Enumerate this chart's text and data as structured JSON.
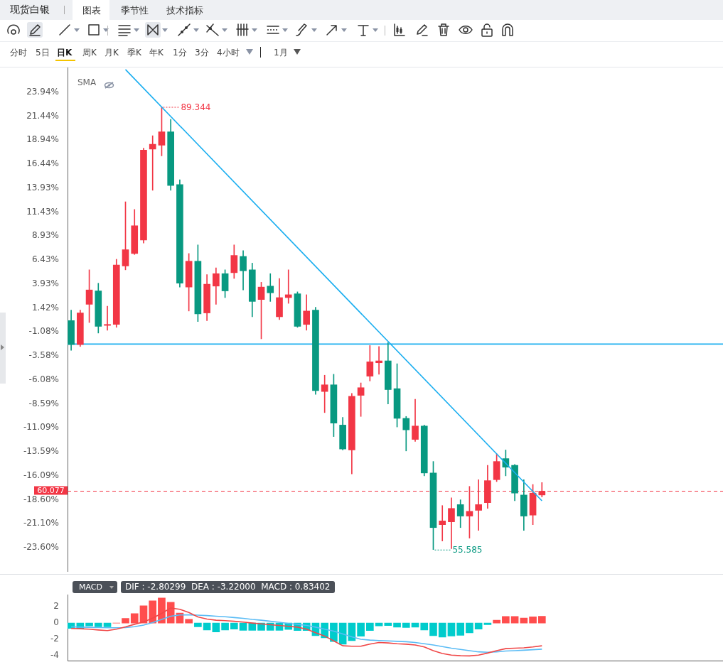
{
  "chart_data": [
    {
      "type": "candlestick",
      "title": "现货白银",
      "annotations": [
        "图表",
        "季节性",
        "技术指标",
        "分时",
        "5日",
        "日K",
        "周K",
        "月K",
        "季K",
        "年K",
        "1分",
        "3分",
        "4小时",
        "1月",
        "SMA",
        "89.344",
        "55.585",
        "60.077"
      ],
      "categories": [
        null,
        null,
        null,
        null,
        null,
        null,
        null,
        null,
        null,
        null,
        null,
        null,
        null,
        null,
        null,
        null,
        null,
        null,
        null,
        null,
        null,
        null,
        null,
        null,
        null,
        null,
        null,
        null,
        null,
        null,
        null,
        null,
        null,
        null,
        null,
        null,
        null,
        null,
        null,
        null,
        null,
        null,
        null,
        null,
        null,
        null,
        null,
        null,
        null,
        null,
        null,
        null,
        null
      ],
      "ohlc": [
        [
          0.1,
          1.2,
          -3.0,
          -2.4
        ],
        [
          -2.4,
          1.2,
          -2.6,
          0.9
        ],
        [
          1.8,
          5.4,
          -0.1,
          3.3
        ],
        [
          3.2,
          4.0,
          -1.2,
          -0.5
        ],
        [
          -0.4,
          1.6,
          -0.9,
          -0.3
        ],
        [
          -0.3,
          6.5,
          -0.6,
          5.9
        ],
        [
          5.8,
          12.5,
          5.4,
          7.5
        ],
        [
          7.1,
          11.7,
          7.0,
          10.0
        ],
        [
          8.5,
          18.1,
          8.2,
          17.9
        ],
        [
          18.0,
          19.4,
          13.7,
          18.5
        ],
        [
          18.4,
          22.4,
          17.3,
          19.8
        ],
        [
          19.8,
          21.1,
          13.7,
          14.2
        ],
        [
          14.3,
          14.8,
          3.6,
          4.0
        ],
        [
          3.6,
          7.1,
          1.1,
          6.3
        ],
        [
          6.3,
          8.0,
          0.0,
          0.8
        ],
        [
          0.9,
          4.9,
          0.1,
          3.9
        ],
        [
          3.7,
          5.6,
          1.8,
          5.0
        ],
        [
          5.0,
          5.4,
          2.5,
          3.2
        ],
        [
          5.1,
          8.0,
          4.5,
          6.9
        ],
        [
          6.8,
          7.4,
          3.3,
          5.3
        ],
        [
          5.4,
          6.1,
          0.5,
          2.1
        ],
        [
          2.3,
          4.1,
          -1.8,
          3.6
        ],
        [
          3.7,
          5.0,
          2.1,
          3.0
        ],
        [
          0.5,
          4.5,
          0.2,
          2.5
        ],
        [
          2.5,
          5.4,
          1.9,
          2.8
        ],
        [
          2.9,
          3.1,
          -0.6,
          -0.5
        ],
        [
          -0.3,
          2.8,
          -0.9,
          1.1
        ],
        [
          1.2,
          1.5,
          -7.6,
          -7.2
        ],
        [
          -7.3,
          -5.6,
          -9.5,
          -6.6
        ],
        [
          -6.6,
          -5.5,
          -12.0,
          -10.6
        ],
        [
          -10.8,
          -10.0,
          -13.4,
          -13.3
        ],
        [
          -13.4,
          -7.5,
          -15.9,
          -7.8
        ],
        [
          -7.7,
          -6.4,
          -9.9,
          -6.9
        ],
        [
          -5.7,
          -2.5,
          -6.2,
          -4.2
        ],
        [
          -4.3,
          -2.6,
          -5.5,
          -4.1
        ],
        [
          -4.1,
          -2.2,
          -8.6,
          -7.1
        ],
        [
          -7.0,
          -4.4,
          -11.0,
          -10.1
        ],
        [
          -10.1,
          -9.9,
          -13.5,
          -11.3
        ],
        [
          -12.3,
          -8.1,
          -12.5,
          -10.9
        ],
        [
          -10.9,
          -10.8,
          -16.1,
          -15.8
        ],
        [
          -15.8,
          -14.6,
          -23.8,
          -21.5
        ],
        [
          -21.2,
          -19.2,
          -22.9,
          -20.8
        ],
        [
          -20.9,
          -18.4,
          -23.7,
          -19.5
        ],
        [
          -19.1,
          -18.6,
          -21.5,
          -20.3
        ],
        [
          -20.3,
          -17.2,
          -22.6,
          -19.8
        ],
        [
          -19.7,
          -16.5,
          -21.8,
          -19.1
        ],
        [
          -18.9,
          -15.0,
          -19.5,
          -16.6
        ],
        [
          -16.5,
          -13.8,
          -16.7,
          -14.6
        ],
        [
          -14.3,
          -13.4,
          -16.1,
          -15.2
        ],
        [
          -15.0,
          -14.9,
          -18.7,
          -17.9
        ],
        [
          -18.1,
          -16.5,
          -21.8,
          -20.3
        ],
        [
          -20.2,
          -17.0,
          -21.2,
          -17.9
        ],
        [
          -18.1,
          -16.8,
          -18.3,
          -17.7
        ]
      ],
      "colors": [
        "#089981",
        "#f23645",
        "#f23645",
        "#089981",
        "#f23645",
        "#f23645",
        "#f23645",
        "#f23645",
        "#f23645",
        "#f23645",
        "#f23645",
        "#089981",
        "#089981",
        "#f23645",
        "#089981",
        "#f23645",
        "#f23645",
        "#089981",
        "#f23645",
        "#089981",
        "#089981",
        "#f23645",
        "#089981",
        "#f23645",
        "#f23645",
        "#089981",
        "#f23645",
        "#089981",
        "#f23645",
        "#089981",
        "#089981",
        "#f23645",
        "#f23645",
        "#f23645",
        "#f23645",
        "#089981",
        "#089981",
        "#089981",
        "#f23645",
        "#089981",
        "#089981",
        "#f23645",
        "#f23645",
        "#089981",
        "#f23645",
        "#f23645",
        "#f23645",
        "#f23645",
        "#089981",
        "#089981",
        "#089981",
        "#f23645",
        "#f23645"
      ],
      "series": [
        {
          "type": "line",
          "color": "#1aaef0",
          "values": [
            null,
            null,
            null,
            null,
            null,
            null,
            26.3,
            null,
            null,
            null,
            null,
            null,
            null,
            null,
            null,
            null,
            null,
            null,
            null,
            null,
            null,
            null,
            null,
            null,
            null,
            null,
            null,
            null,
            null,
            null,
            null,
            null,
            null,
            null,
            null,
            null,
            null,
            null,
            null,
            null,
            null,
            null,
            null,
            null,
            null,
            null,
            null,
            null,
            null,
            null,
            null,
            null,
            -18.7
          ]
        }
      ],
      "ref_lines": [
        {
          "axis": "y",
          "value": -2.35,
          "color": "#1aaef0",
          "line_style": "solid"
        },
        {
          "axis": "y",
          "value": -17.7,
          "color": "#f23645",
          "line_style": "dashed"
        }
      ],
      "ylim": [
        -26.1,
        26.5
      ],
      "yticks": [
        {
          "value": 23.94,
          "label": "23.94%"
        },
        {
          "value": 21.44,
          "label": "21.44%"
        },
        {
          "value": 18.94,
          "label": "18.94%"
        },
        {
          "value": 16.44,
          "label": "16.44%"
        },
        {
          "value": 13.93,
          "label": "13.93%"
        },
        {
          "value": 11.43,
          "label": "11.43%"
        },
        {
          "value": 8.93,
          "label": "8.93%"
        },
        {
          "value": 6.43,
          "label": "6.43%"
        },
        {
          "value": 3.93,
          "label": "3.93%"
        },
        {
          "value": 1.42,
          "label": "1.42%"
        },
        {
          "value": -1.08,
          "label": "-1.08%"
        },
        {
          "value": -3.58,
          "label": "-3.58%"
        },
        {
          "value": -6.08,
          "label": "-6.08%"
        },
        {
          "value": -8.59,
          "label": "-8.59%"
        },
        {
          "value": -11.09,
          "label": "-11.09%"
        },
        {
          "value": -13.59,
          "label": "-13.59%"
        },
        {
          "value": -16.09,
          "label": "-16.09%"
        },
        {
          "value": -18.6,
          "label": "-18.60%"
        },
        {
          "value": -21.1,
          "label": "-21.10%"
        },
        {
          "value": -23.6,
          "label": "-23.60%"
        }
      ],
      "tick_labels": "y"
    },
    {
      "type": "bar",
      "title": "MACD",
      "subtitle": "DIF : -2.80299  DEA : -3.22000  MACD : 0.83402",
      "categories": [
        null,
        null,
        null,
        null,
        null,
        null,
        null,
        null,
        null,
        null,
        null,
        null,
        null,
        null,
        null,
        null,
        null,
        null,
        null,
        null,
        null,
        null,
        null,
        null,
        null,
        null,
        null,
        null,
        null,
        null,
        null,
        null,
        null,
        null,
        null,
        null,
        null,
        null,
        null,
        null,
        null,
        null,
        null,
        null,
        null,
        null,
        null,
        null,
        null,
        null,
        null,
        null,
        null
      ],
      "series": [
        {
          "type": "bar",
          "values": [
            -0.66,
            -0.66,
            -0.35,
            -0.47,
            -0.47,
            0,
            0.58,
            1.16,
            2.13,
            2.75,
            3.1,
            2.56,
            1.24,
            0.47,
            -0.47,
            -0.85,
            -1.09,
            -0.85,
            -0.74,
            -0.89,
            -0.89,
            -0.89,
            -0.89,
            -0.89,
            -0.78,
            -0.93,
            -0.93,
            -1.55,
            -1.82,
            -2.29,
            -2.6,
            -2.17,
            -1.63,
            -0.93,
            -0.35,
            -0.31,
            -0.5,
            -0.54,
            -0.5,
            -0.85,
            -1.55,
            -1.74,
            -1.59,
            -1.51,
            -1.2,
            -0.74,
            -0.19,
            0.35,
            0.81,
            0.81,
            0.62,
            0.78,
            0.83
          ],
          "colors": [
            "#00cccc",
            "#00cccc",
            "#00cccc",
            "#00cccc",
            "#00cccc",
            "#ff4d4d",
            "#ff4d4d",
            "#ff4d4d",
            "#ff4d4d",
            "#ff4d4d",
            "#ff4d4d",
            "#ff4d4d",
            "#ff4d4d",
            "#ff4d4d",
            "#00cccc",
            "#00cccc",
            "#00cccc",
            "#00cccc",
            "#00cccc",
            "#00cccc",
            "#00cccc",
            "#00cccc",
            "#00cccc",
            "#00cccc",
            "#00cccc",
            "#00cccc",
            "#00cccc",
            "#00cccc",
            "#00cccc",
            "#00cccc",
            "#00cccc",
            "#00cccc",
            "#00cccc",
            "#00cccc",
            "#00cccc",
            "#00cccc",
            "#00cccc",
            "#00cccc",
            "#00cccc",
            "#00cccc",
            "#00cccc",
            "#00cccc",
            "#00cccc",
            "#00cccc",
            "#00cccc",
            "#00cccc",
            "#00cccc",
            "#ff4d4d",
            "#ff4d4d",
            "#ff4d4d",
            "#ff4d4d",
            "#ff4d4d",
            "#ff4d4d"
          ]
        },
        {
          "type": "line",
          "color": "#f04848",
          "values": [
            -0.66,
            -0.7,
            -0.75,
            -0.85,
            -0.93,
            -0.75,
            -0.47,
            -0.15,
            0.15,
            0.6,
            1.2,
            1.86,
            1.7,
            1.3,
            0.75,
            0.5,
            0.35,
            0.3,
            0.22,
            0.12,
            0.0,
            -0.1,
            -0.2,
            -0.3,
            -0.4,
            -0.5,
            -0.75,
            -1.2,
            -1.6,
            -2.2,
            -2.8,
            -2.85,
            -2.85,
            -2.6,
            -2.4,
            -2.45,
            -2.55,
            -2.6,
            -2.7,
            -2.95,
            -3.4,
            -3.75,
            -3.95,
            -4.03,
            -4.05,
            -3.95,
            -3.7,
            -3.4,
            -3.15,
            -3.1,
            -3.05,
            -2.95,
            -2.8
          ]
        },
        {
          "type": "line",
          "color": "#5bbcf5",
          "values": [
            -0.47,
            -0.5,
            -0.52,
            -0.55,
            -0.58,
            -0.58,
            -0.55,
            -0.45,
            -0.25,
            0.05,
            0.45,
            0.85,
            1.0,
            1.01,
            0.98,
            0.92,
            0.85,
            0.78,
            0.68,
            0.58,
            0.45,
            0.35,
            0.22,
            0.1,
            -0.05,
            -0.15,
            -0.3,
            -0.5,
            -0.75,
            -1.0,
            -1.35,
            -1.7,
            -2.0,
            -2.1,
            -2.15,
            -2.2,
            -2.25,
            -2.3,
            -2.4,
            -2.55,
            -2.7,
            -2.9,
            -3.1,
            -3.25,
            -3.4,
            -3.55,
            -3.6,
            -3.55,
            -3.45,
            -3.4,
            -3.35,
            -3.28,
            -3.22
          ]
        }
      ],
      "ylim": [
        -4.7,
        3.5
      ],
      "yticks": [
        -4,
        -2,
        0,
        2
      ],
      "tick_labels": "y",
      "marker": "none"
    }
  ]
}
